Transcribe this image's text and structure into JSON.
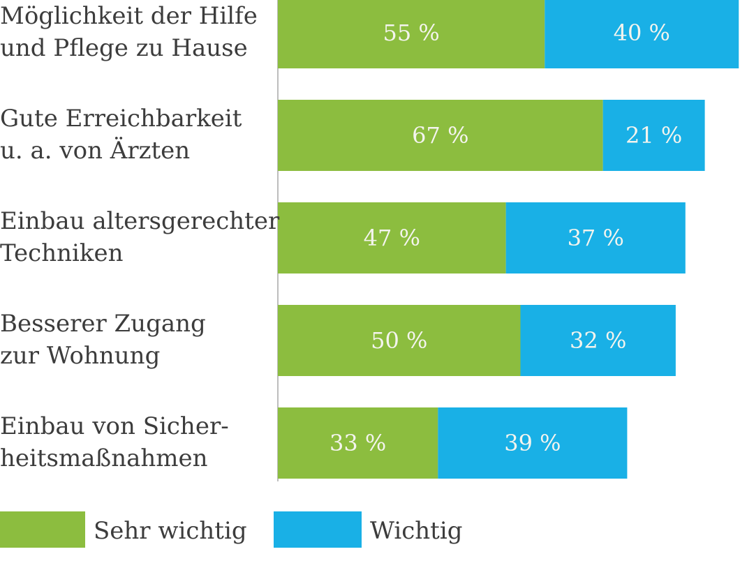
{
  "chart_data": {
    "type": "bar",
    "orientation": "horizontal",
    "stacked": true,
    "categories": [
      [
        "Möglichkeit der Hilfe",
        "und Pflege zu Hause"
      ],
      [
        "Gute Erreichbarkeit",
        "u. a. von Ärzten"
      ],
      [
        "Einbau altersgerechter",
        "Techniken"
      ],
      [
        "Besserer Zugang",
        "zur Wohnung"
      ],
      [
        "Einbau von Sicher-",
        "heitsmaßnahmen"
      ]
    ],
    "series": [
      {
        "name": "Sehr wichtig",
        "color": "#8cbd3f",
        "values": [
          55,
          67,
          47,
          50,
          33
        ],
        "labels": [
          "55 %",
          "67 %",
          "47 %",
          "50 %",
          "33 %"
        ]
      },
      {
        "name": "Wichtig",
        "color": "#19b0e6",
        "values": [
          40,
          21,
          37,
          32,
          39
        ],
        "labels": [
          "40 %",
          "21 %",
          "37 %",
          "32 %",
          "39 %"
        ]
      }
    ],
    "xlim": [
      0,
      95
    ],
    "grid": false,
    "legend": "bottom-left",
    "title": "",
    "xlabel": "",
    "ylabel": ""
  }
}
